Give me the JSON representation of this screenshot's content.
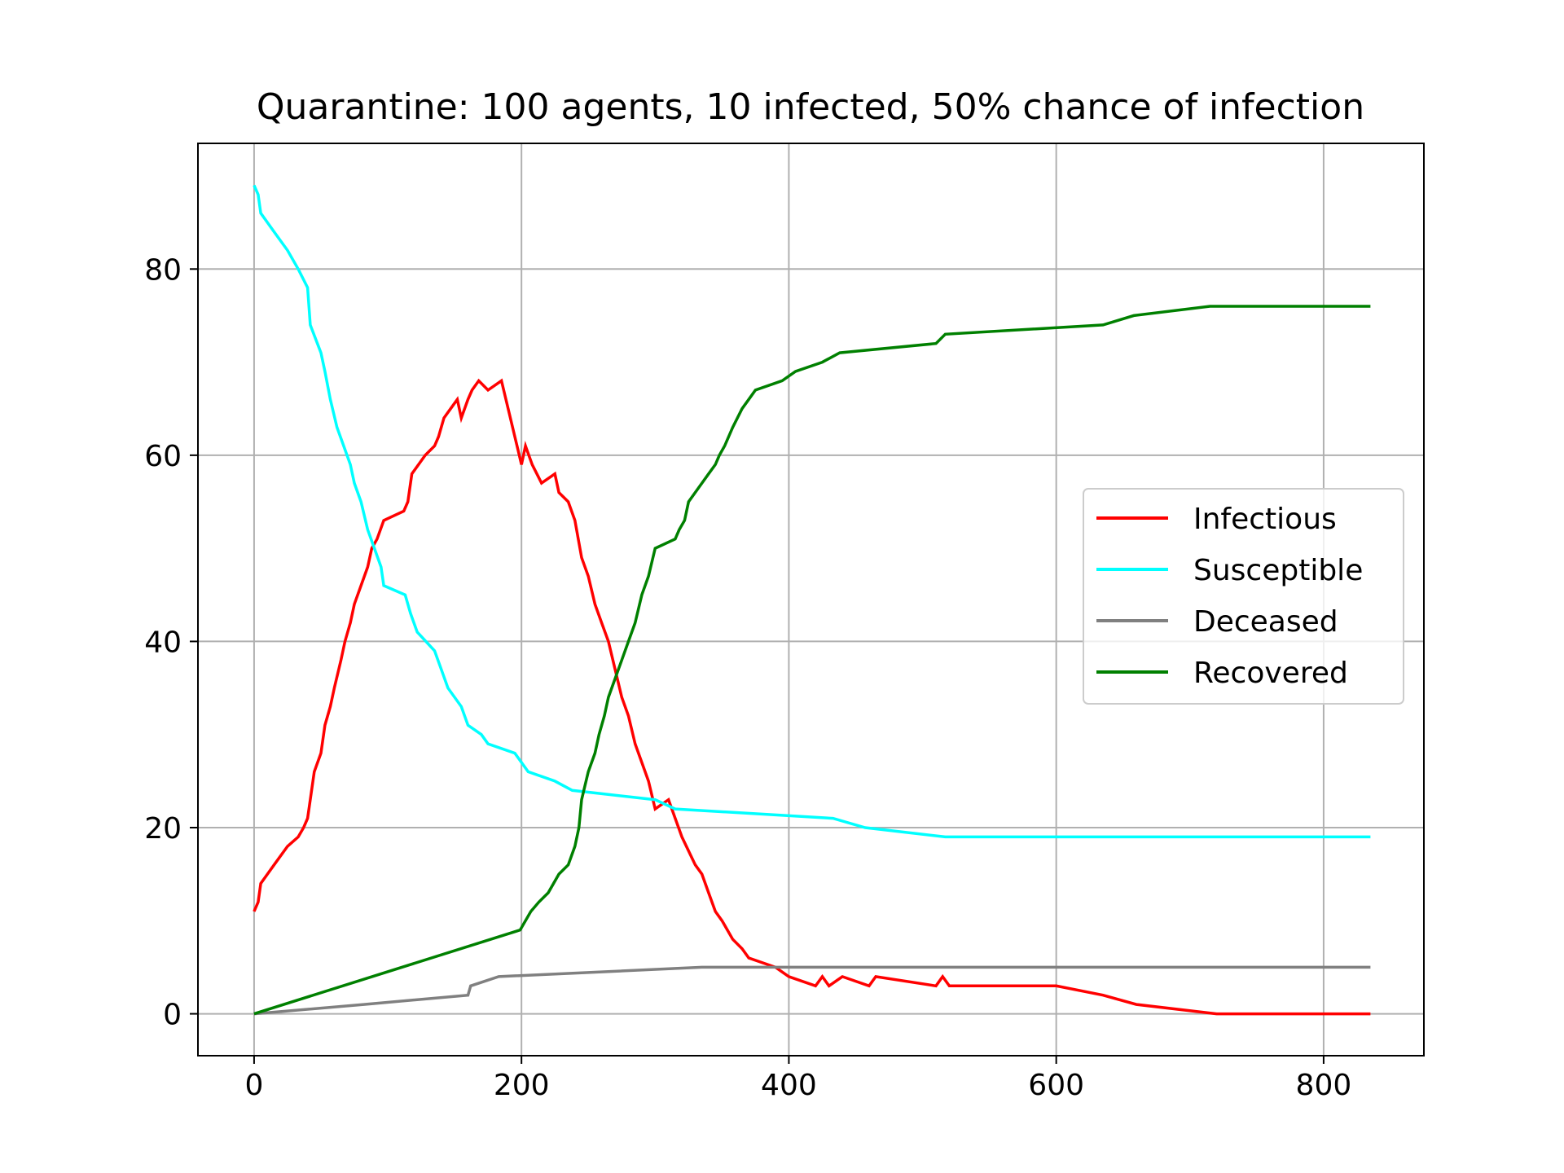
{
  "chart_data": {
    "type": "line",
    "title": "Quarantine: 100 agents, 10 infected, 50% chance of infection",
    "xlabel": "",
    "ylabel": "",
    "xlim": [
      -42,
      875
    ],
    "ylim": [
      -4.5,
      93.5
    ],
    "xticks": [
      0,
      200,
      400,
      600,
      800
    ],
    "yticks": [
      0,
      20,
      40,
      60,
      80
    ],
    "grid": true,
    "legend_position": "center-right",
    "series": [
      {
        "name": "Infectious",
        "color": "#ff0000",
        "points": [
          [
            0,
            11
          ],
          [
            3,
            12
          ],
          [
            5,
            14
          ],
          [
            10,
            15
          ],
          [
            15,
            16
          ],
          [
            25,
            18
          ],
          [
            33,
            19
          ],
          [
            37,
            20
          ],
          [
            40,
            21
          ],
          [
            42,
            23
          ],
          [
            45,
            26
          ],
          [
            50,
            28
          ],
          [
            53,
            31
          ],
          [
            57,
            33
          ],
          [
            60,
            35
          ],
          [
            65,
            38
          ],
          [
            68,
            40
          ],
          [
            72,
            42
          ],
          [
            75,
            44
          ],
          [
            80,
            46
          ],
          [
            85,
            48
          ],
          [
            88,
            50
          ],
          [
            92,
            51
          ],
          [
            97,
            53
          ],
          [
            112,
            54
          ],
          [
            115,
            55
          ],
          [
            118,
            58
          ],
          [
            128,
            60
          ],
          [
            135,
            61
          ],
          [
            138,
            62
          ],
          [
            142,
            64
          ],
          [
            147,
            65
          ],
          [
            152,
            66
          ],
          [
            155,
            64
          ],
          [
            160,
            66
          ],
          [
            163,
            67
          ],
          [
            168,
            68
          ],
          [
            175,
            67
          ],
          [
            185,
            68
          ],
          [
            200,
            59
          ],
          [
            203,
            61
          ],
          [
            208,
            59
          ],
          [
            215,
            57
          ],
          [
            225,
            58
          ],
          [
            228,
            56
          ],
          [
            235,
            55
          ],
          [
            240,
            53
          ],
          [
            245,
            49
          ],
          [
            250,
            47
          ],
          [
            255,
            44
          ],
          [
            260,
            42
          ],
          [
            265,
            40
          ],
          [
            270,
            37
          ],
          [
            275,
            34
          ],
          [
            280,
            32
          ],
          [
            285,
            29
          ],
          [
            290,
            27
          ],
          [
            295,
            25
          ],
          [
            300,
            22
          ],
          [
            310,
            23
          ],
          [
            315,
            21
          ],
          [
            320,
            19
          ],
          [
            330,
            16
          ],
          [
            335,
            15
          ],
          [
            340,
            13
          ],
          [
            345,
            11
          ],
          [
            350,
            10
          ],
          [
            358,
            8
          ],
          [
            365,
            7
          ],
          [
            370,
            6
          ],
          [
            390,
            5
          ],
          [
            400,
            4
          ],
          [
            420,
            3
          ],
          [
            425,
            4
          ],
          [
            430,
            3
          ],
          [
            440,
            4
          ],
          [
            460,
            3
          ],
          [
            465,
            4
          ],
          [
            510,
            3
          ],
          [
            515,
            4
          ],
          [
            520,
            3
          ],
          [
            600,
            3
          ],
          [
            635,
            2
          ],
          [
            660,
            1
          ],
          [
            720,
            0
          ],
          [
            835,
            0
          ]
        ]
      },
      {
        "name": "Susceptible",
        "color": "#00ffff",
        "points": [
          [
            0,
            89
          ],
          [
            3,
            88
          ],
          [
            5,
            86
          ],
          [
            10,
            85
          ],
          [
            15,
            84
          ],
          [
            25,
            82
          ],
          [
            33,
            80
          ],
          [
            40,
            78
          ],
          [
            42,
            74
          ],
          [
            50,
            71
          ],
          [
            53,
            69
          ],
          [
            57,
            66
          ],
          [
            62,
            63
          ],
          [
            67,
            61
          ],
          [
            72,
            59
          ],
          [
            75,
            57
          ],
          [
            80,
            55
          ],
          [
            85,
            52
          ],
          [
            90,
            50
          ],
          [
            95,
            48
          ],
          [
            97,
            46
          ],
          [
            113,
            45
          ],
          [
            117,
            43
          ],
          [
            122,
            41
          ],
          [
            135,
            39
          ],
          [
            140,
            37
          ],
          [
            145,
            35
          ],
          [
            155,
            33
          ],
          [
            160,
            31
          ],
          [
            170,
            30
          ],
          [
            175,
            29
          ],
          [
            195,
            28
          ],
          [
            200,
            27
          ],
          [
            205,
            26
          ],
          [
            225,
            25
          ],
          [
            238,
            24
          ],
          [
            300,
            23
          ],
          [
            315,
            22
          ],
          [
            433,
            21
          ],
          [
            457,
            20
          ],
          [
            517,
            19
          ],
          [
            835,
            19
          ]
        ]
      },
      {
        "name": "Deceased",
        "color": "#808080",
        "points": [
          [
            0,
            0
          ],
          [
            82,
            1
          ],
          [
            160,
            2
          ],
          [
            162,
            3
          ],
          [
            183,
            4
          ],
          [
            335,
            5
          ],
          [
            835,
            5
          ]
        ]
      },
      {
        "name": "Recovered",
        "color": "#008000",
        "points": [
          [
            0,
            0
          ],
          [
            199,
            9
          ],
          [
            207,
            11
          ],
          [
            213,
            12
          ],
          [
            220,
            13
          ],
          [
            228,
            15
          ],
          [
            235,
            16
          ],
          [
            240,
            18
          ],
          [
            243,
            20
          ],
          [
            245,
            23
          ],
          [
            250,
            26
          ],
          [
            255,
            28
          ],
          [
            258,
            30
          ],
          [
            262,
            32
          ],
          [
            265,
            34
          ],
          [
            270,
            36
          ],
          [
            275,
            38
          ],
          [
            280,
            40
          ],
          [
            285,
            42
          ],
          [
            290,
            45
          ],
          [
            295,
            47
          ],
          [
            300,
            50
          ],
          [
            315,
            51
          ],
          [
            318,
            52
          ],
          [
            322,
            53
          ],
          [
            325,
            55
          ],
          [
            335,
            57
          ],
          [
            340,
            58
          ],
          [
            345,
            59
          ],
          [
            348,
            60
          ],
          [
            352,
            61
          ],
          [
            358,
            63
          ],
          [
            365,
            65
          ],
          [
            370,
            66
          ],
          [
            375,
            67
          ],
          [
            395,
            68
          ],
          [
            405,
            69
          ],
          [
            425,
            70
          ],
          [
            438,
            71
          ],
          [
            510,
            72
          ],
          [
            517,
            73
          ],
          [
            635,
            74
          ],
          [
            658,
            75
          ],
          [
            715,
            76
          ],
          [
            835,
            76
          ]
        ]
      }
    ]
  }
}
